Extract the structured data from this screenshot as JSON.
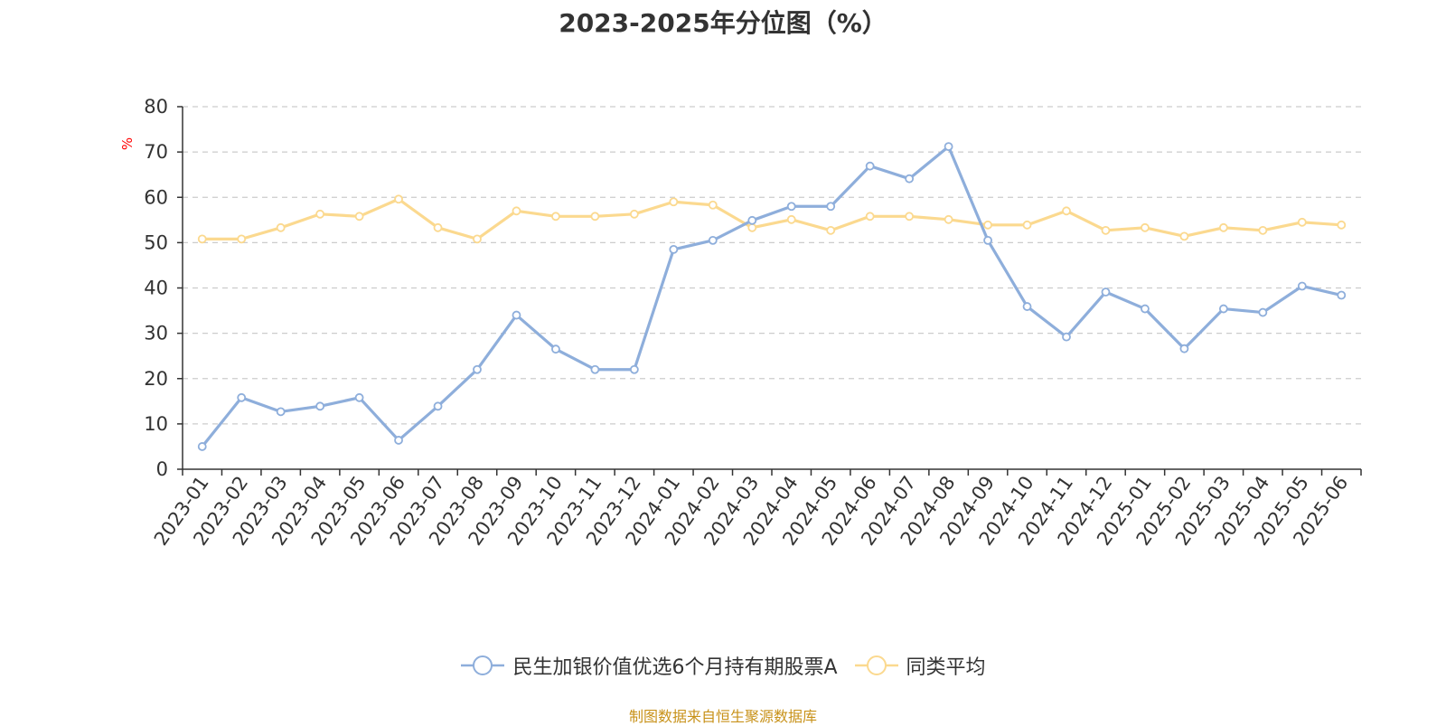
{
  "chart_data": {
    "type": "line",
    "title": "2023-2025年分位图（%）",
    "ylabel": "%",
    "ylim": [
      0,
      80
    ],
    "yticks": [
      "0",
      "10",
      "20",
      "30",
      "40",
      "50",
      "60",
      "70",
      "80"
    ],
    "grid": true,
    "legend_position": "bottom",
    "categories": [
      "2023-01",
      "2023-02",
      "2023-03",
      "2023-04",
      "2023-05",
      "2023-06",
      "2023-07",
      "2023-08",
      "2023-09",
      "2023-10",
      "2023-11",
      "2023-12",
      "2024-01",
      "2024-02",
      "2024-03",
      "2024-04",
      "2024-05",
      "2024-06",
      "2024-07",
      "2024-08",
      "2024-09",
      "2024-10",
      "2024-11",
      "2024-12",
      "2025-01",
      "2025-02",
      "2025-03",
      "2025-04",
      "2025-05",
      "2025-06"
    ],
    "series": [
      {
        "name": "民生加银价值优选6个月持有期股票A",
        "color": "#8eaedb",
        "values": [
          5.0,
          15.8,
          12.7,
          13.9,
          15.8,
          6.4,
          13.9,
          22.0,
          34.0,
          26.5,
          22.0,
          22.0,
          48.5,
          50.5,
          54.9,
          58.0,
          58.0,
          66.9,
          64.1,
          71.2,
          50.5,
          35.9,
          29.2,
          39.1,
          35.4,
          26.6,
          35.4,
          34.6,
          40.4,
          38.4
        ]
      },
      {
        "name": "同类平均",
        "color": "#fbd98f",
        "values": [
          50.8,
          50.8,
          53.3,
          56.3,
          55.8,
          59.6,
          53.3,
          50.8,
          57.0,
          55.8,
          55.8,
          56.3,
          59.0,
          58.3,
          53.3,
          55.1,
          52.7,
          55.8,
          55.8,
          55.1,
          53.9,
          53.9,
          57.0,
          52.7,
          53.3,
          51.4,
          53.3,
          52.7,
          54.5,
          53.9
        ]
      }
    ]
  },
  "source_text": "制图数据来自恒生聚源数据库",
  "colors": {
    "title": "#333333",
    "axis": "#333333",
    "grid": "#cccccc",
    "ylabel": "#ff0000",
    "source": "#c8921a"
  }
}
